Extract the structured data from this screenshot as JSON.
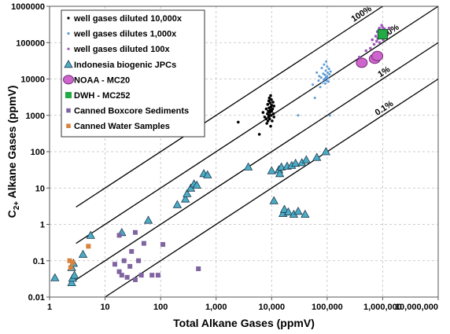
{
  "chart_data": {
    "type": "scatter",
    "xscale": "log",
    "yscale": "log",
    "xlim": [
      1,
      10000000
    ],
    "ylim": [
      0.01,
      1000000
    ],
    "xlabel": "Total Alkane Gases (ppmV)",
    "ylabel": {
      "prefix": "C",
      "sub": "2+",
      "suffix": " Alkane Gases (ppmV)"
    },
    "xticks": [
      {
        "value": 1,
        "label": "1"
      },
      {
        "value": 10,
        "label": "10"
      },
      {
        "value": 100,
        "label": "100"
      },
      {
        "value": 1000,
        "label": "1,000"
      },
      {
        "value": 10000,
        "label": "10,000"
      },
      {
        "value": 100000,
        "label": "100,000"
      },
      {
        "value": 1000000,
        "label": "1,000,000"
      },
      {
        "value": 10000000,
        "label": "10,000,000"
      }
    ],
    "yticks": [
      {
        "value": 0.01,
        "label": "0.01"
      },
      {
        "value": 0.1,
        "label": "0.1"
      },
      {
        "value": 1,
        "label": "1"
      },
      {
        "value": 10,
        "label": "10"
      },
      {
        "value": 100,
        "label": "100"
      },
      {
        "value": 1000,
        "label": "1000"
      },
      {
        "value": 10000,
        "label": "10000"
      },
      {
        "value": 100000,
        "label": "100000"
      },
      {
        "value": 1000000,
        "label": "1000000"
      }
    ],
    "grid": true,
    "legend_position": "top-left",
    "reference_lines": [
      {
        "label": "100%",
        "ratio": 1,
        "label_at_x": 300000
      },
      {
        "label": "10%",
        "ratio": 0.1,
        "label_at_x": 1100000
      },
      {
        "label": "1%",
        "ratio": 0.01,
        "label_at_x": 900000
      },
      {
        "label": "0.1%",
        "ratio": 0.001,
        "label_at_x": 800000
      }
    ],
    "series": [
      {
        "name": "well gases diluted 10,000x",
        "marker": "dot",
        "color": "#000000",
        "size": 1.8,
        "points": [
          [
            2500,
            650
          ],
          [
            6000,
            300
          ],
          [
            7000,
            1200
          ],
          [
            7500,
            900
          ],
          [
            8000,
            800
          ],
          [
            8000,
            1500
          ],
          [
            8200,
            600
          ],
          [
            8400,
            1100
          ],
          [
            8500,
            2000
          ],
          [
            8600,
            700
          ],
          [
            8700,
            1300
          ],
          [
            8800,
            900
          ],
          [
            8900,
            2500
          ],
          [
            9000,
            1000
          ],
          [
            9000,
            1600
          ],
          [
            9100,
            3000
          ],
          [
            9200,
            800
          ],
          [
            9300,
            1200
          ],
          [
            9400,
            2200
          ],
          [
            9500,
            1400
          ],
          [
            9600,
            500
          ],
          [
            9600,
            3500
          ],
          [
            9700,
            1700
          ],
          [
            9800,
            1000
          ],
          [
            9900,
            2700
          ],
          [
            10000,
            1900
          ],
          [
            10000,
            1300
          ],
          [
            10200,
            700
          ],
          [
            10400,
            1500
          ],
          [
            10600,
            2300
          ],
          [
            10800,
            1100
          ],
          [
            11000,
            1800
          ],
          [
            11000,
            900
          ]
        ]
      },
      {
        "name": "well gases dilutes 1,000x",
        "marker": "dot",
        "color": "#5b9bd5",
        "size": 1.5,
        "points": [
          [
            30000,
            1000
          ],
          [
            55000,
            7000
          ],
          [
            60000,
            3000
          ],
          [
            65000,
            15000
          ],
          [
            70000,
            9000
          ],
          [
            72000,
            12000
          ],
          [
            75000,
            6000
          ],
          [
            78000,
            11000
          ],
          [
            80000,
            20000
          ],
          [
            82000,
            8000
          ],
          [
            85000,
            14000
          ],
          [
            87000,
            9500
          ],
          [
            88000,
            25000
          ],
          [
            90000,
            10000
          ],
          [
            91000,
            13000
          ],
          [
            92000,
            7500
          ],
          [
            94000,
            17000
          ],
          [
            95000,
            11000
          ],
          [
            96000,
            30000
          ],
          [
            98000,
            9000
          ],
          [
            100000,
            12000
          ],
          [
            100000,
            22000
          ],
          [
            102000,
            15000
          ],
          [
            104000,
            10500
          ],
          [
            106000,
            8500
          ],
          [
            108000,
            19000
          ],
          [
            110000,
            13500
          ],
          [
            112000,
            1000
          ],
          [
            115000,
            16000
          ]
        ]
      },
      {
        "name": "well gases diluted 100x",
        "marker": "dot",
        "color": "#9b59b6",
        "size": 1.8,
        "points": [
          [
            380000,
            40000
          ],
          [
            500000,
            60000
          ],
          [
            600000,
            70000
          ],
          [
            650000,
            120000
          ],
          [
            700000,
            90000
          ],
          [
            750000,
            150000
          ],
          [
            780000,
            110000
          ],
          [
            800000,
            200000
          ],
          [
            820000,
            130000
          ],
          [
            850000,
            170000
          ],
          [
            870000,
            250000
          ],
          [
            880000,
            100000
          ],
          [
            900000,
            180000
          ],
          [
            920000,
            220000
          ],
          [
            940000,
            140000
          ],
          [
            960000,
            300000
          ],
          [
            980000,
            160000
          ],
          [
            1000000,
            200000
          ],
          [
            1000000,
            260000
          ],
          [
            1020000,
            120000
          ],
          [
            1050000,
            190000
          ],
          [
            1080000,
            240000
          ],
          [
            1100000,
            150000
          ],
          [
            1150000,
            210000
          ],
          [
            1200000,
            170000
          ],
          [
            1300000,
            250000
          ]
        ]
      },
      {
        "name": "Indonesia biogenic JPCs",
        "marker": "triangle",
        "color": "#4bacc6",
        "size": 5,
        "points": [
          [
            1.25,
            0.034
          ],
          [
            2.5,
            0.025
          ],
          [
            2.6,
            0.033
          ],
          [
            2.8,
            0.04
          ],
          [
            2.5,
            0.065
          ],
          [
            2.7,
            0.085
          ],
          [
            4,
            0.15
          ],
          [
            5.5,
            0.5
          ],
          [
            20,
            0.6
          ],
          [
            60,
            1.3
          ],
          [
            200,
            3.5
          ],
          [
            280,
            5
          ],
          [
            300,
            7
          ],
          [
            350,
            10
          ],
          [
            400,
            13
          ],
          [
            450,
            12
          ],
          [
            600,
            25
          ],
          [
            700,
            23
          ],
          [
            3800,
            38
          ],
          [
            10000,
            30
          ],
          [
            11000,
            4.5
          ],
          [
            13500,
            32
          ],
          [
            14000,
            25
          ],
          [
            15000,
            38
          ],
          [
            16000,
            2.0
          ],
          [
            17000,
            2.6
          ],
          [
            19000,
            40
          ],
          [
            20000,
            2.2
          ],
          [
            23000,
            42
          ],
          [
            25000,
            1.9
          ],
          [
            27000,
            48
          ],
          [
            30000,
            2.3
          ],
          [
            35000,
            50
          ],
          [
            40000,
            1.9
          ],
          [
            42000,
            60
          ],
          [
            65000,
            70
          ],
          [
            95000,
            100
          ]
        ]
      },
      {
        "name": "NOAA - MC20",
        "marker": "circle",
        "color": "#cc66cc",
        "size": 6,
        "points": [
          [
            420000,
            28000
          ],
          [
            720000,
            36000
          ],
          [
            800000,
            43000
          ]
        ]
      },
      {
        "name": "DWH - MC252",
        "marker": "square",
        "color": "#22aa44",
        "size": 12,
        "points": [
          [
            1000000,
            170000
          ]
        ]
      },
      {
        "name": "Canned Boxcore Sediments",
        "marker": "square",
        "color": "#8064a2",
        "size": 6,
        "points": [
          [
            15,
            0.08
          ],
          [
            18,
            0.05
          ],
          [
            18,
            0.5
          ],
          [
            20,
            0.04
          ],
          [
            22,
            0.1
          ],
          [
            25,
            0.035
          ],
          [
            28,
            0.07
          ],
          [
            30,
            0.18
          ],
          [
            35,
            0.03
          ],
          [
            35,
            0.6
          ],
          [
            40,
            0.1
          ],
          [
            45,
            0.04
          ],
          [
            50,
            0.3
          ],
          [
            70,
            0.04
          ],
          [
            90,
            0.04
          ],
          [
            110,
            0.28
          ],
          [
            480,
            0.06
          ]
        ]
      },
      {
        "name": "Canned Water Samples",
        "marker": "square",
        "color": "#d9823b",
        "size": 6,
        "points": [
          [
            2.3,
            0.1
          ],
          [
            2.4,
            0.065
          ],
          [
            2.6,
            0.09
          ],
          [
            5,
            0.25
          ]
        ]
      }
    ]
  }
}
